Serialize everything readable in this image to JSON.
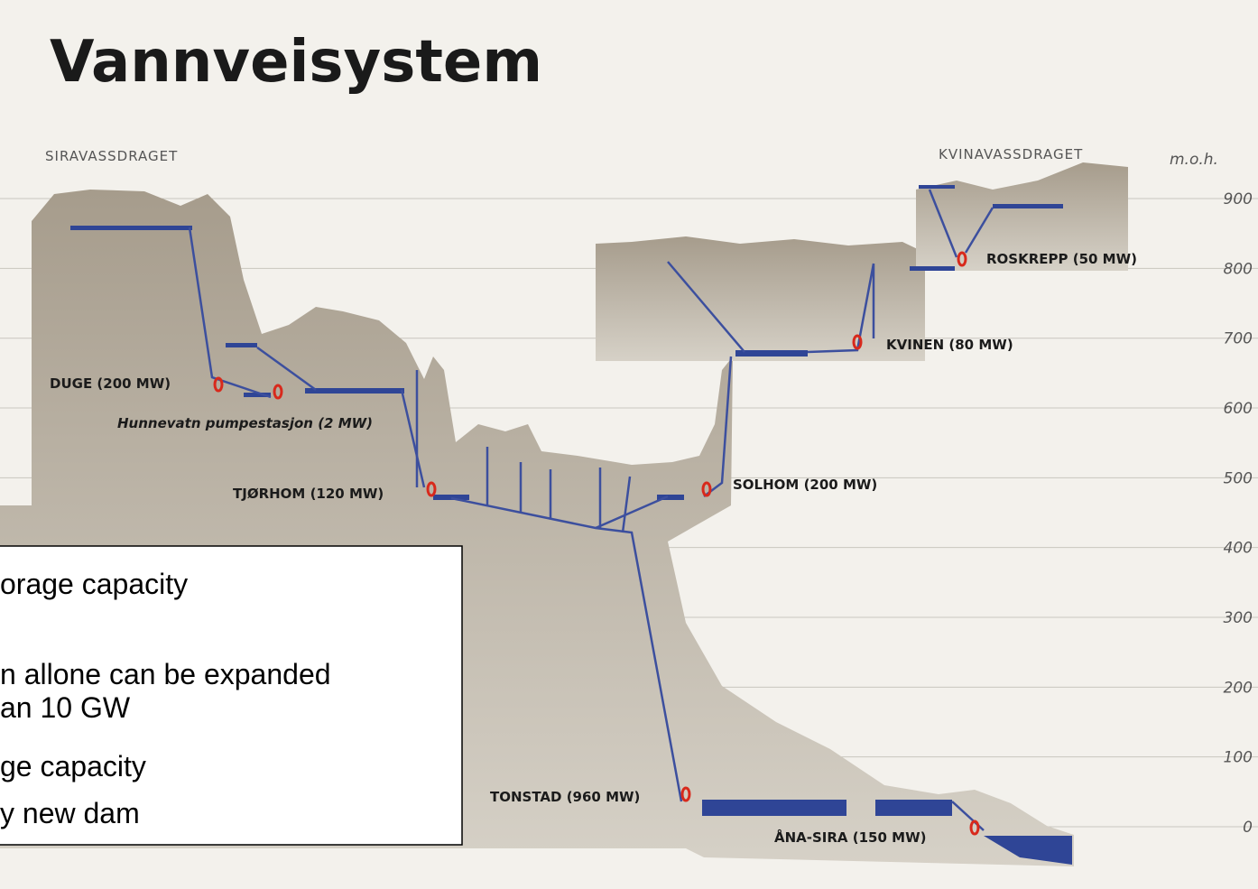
{
  "title": "Vannveisystem",
  "regions": {
    "left": "SIRAVASSDRAGET",
    "right": "KVINAVASSDRAGET"
  },
  "elevation_axis": {
    "label": "m.o.h.",
    "ticks": [
      900,
      800,
      700,
      600,
      500,
      400,
      300,
      200,
      100,
      0
    ]
  },
  "stations": {
    "duge": "DUGE (200 MW)",
    "hunnevatn": "Hunnevatn pumpestasjon (2 MW)",
    "tjorhom": "TJØRHOM (120 MW)",
    "solhom": "SOLHOM (200 MW)",
    "kvinen": "KVINEN (80 MW)",
    "roskrepp": "ROSKREPP (50 MW)",
    "tonstad": "TONSTAD (960 MW)",
    "ana_sira": "ÅNA-SIRA (150 MW)"
  },
  "callout": {
    "lines": [
      "orage capacity",
      "n allone can be expanded",
      "an 10 GW",
      "ge capacity",
      "y new dam"
    ]
  }
}
